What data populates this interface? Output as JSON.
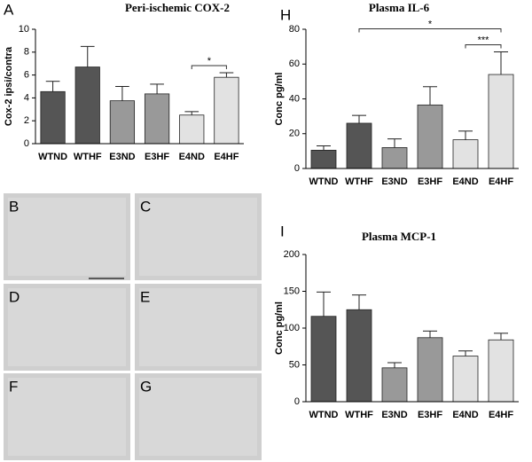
{
  "chart_data": [
    {
      "type": "bar",
      "panel": "A",
      "title": "Peri-ischemic COX-2",
      "ylabel": "Cox-2 ipsi/contra",
      "categories": [
        "WTND",
        "WTHF",
        "E3ND",
        "E3HF",
        "E4ND",
        "E4HF"
      ],
      "values": [
        4.55,
        6.7,
        3.75,
        4.35,
        2.5,
        5.8
      ],
      "errors": [
        0.9,
        1.8,
        1.25,
        0.85,
        0.3,
        0.4
      ],
      "colors": [
        "#555555",
        "#555555",
        "#999999",
        "#999999",
        "#e2e2e2",
        "#e2e2e2"
      ],
      "ylim": [
        0,
        10
      ],
      "yticks": [
        0,
        2,
        4,
        6,
        8,
        10
      ],
      "annotations": [
        "*"
      ]
    },
    {
      "type": "bar",
      "panel": "H",
      "title": "Plasma IL-6",
      "ylabel": "Conc pg/ml",
      "categories": [
        "WTND",
        "WTHF",
        "E3ND",
        "E3HF",
        "E4ND",
        "E4HF"
      ],
      "values": [
        10.5,
        26,
        12,
        36.5,
        16.5,
        54
      ],
      "errors": [
        2.5,
        4.5,
        5,
        10.5,
        5,
        13
      ],
      "colors": [
        "#555555",
        "#555555",
        "#999999",
        "#999999",
        "#e2e2e2",
        "#e2e2e2"
      ],
      "ylim": [
        0,
        80
      ],
      "yticks": [
        0,
        20,
        40,
        60,
        80
      ],
      "annotations": [
        "*",
        "***"
      ]
    },
    {
      "type": "bar",
      "panel": "I",
      "title": "Plasma MCP-1",
      "ylabel": "Conc pg/ml",
      "categories": [
        "WTND",
        "WTHF",
        "E3ND",
        "E3HF",
        "E4ND",
        "E4HF"
      ],
      "values": [
        116,
        125,
        46,
        87,
        62,
        84
      ],
      "errors": [
        33,
        20,
        7,
        9,
        7,
        9
      ],
      "colors": [
        "#555555",
        "#555555",
        "#999999",
        "#999999",
        "#e2e2e2",
        "#e2e2e2"
      ],
      "ylim": [
        0,
        200
      ],
      "yticks": [
        0,
        50,
        100,
        150,
        200
      ],
      "annotations": []
    }
  ],
  "image_panels": [
    "B",
    "C",
    "D",
    "E",
    "F",
    "G"
  ]
}
